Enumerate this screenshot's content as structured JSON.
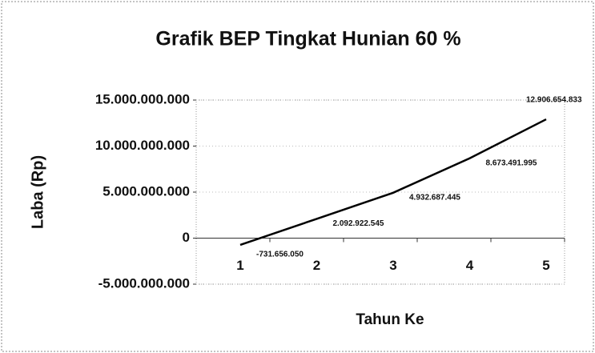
{
  "chart_data": {
    "type": "line",
    "title": "Grafik BEP Tingkat Hunian 60 %",
    "x_label": "Tahun Ke",
    "y_label": "Laba (Rp)",
    "categories": [
      "1",
      "2",
      "3",
      "4",
      "5"
    ],
    "values": [
      -731656050,
      2092922545,
      4932687445,
      8673491995,
      12906654833
    ],
    "value_labels": [
      "-731.656.050",
      "2.092.922.545",
      "4.932.687.445",
      "8.673.491.995",
      "12.906.654.833"
    ],
    "color": "#000000",
    "ylim": [
      -5000000000,
      15000000000
    ],
    "yticks": [
      {
        "value": -5000000000,
        "label": "-5.000.000.000"
      },
      0,
      {
        "value": 5000000000,
        "label": "5.000.000.000"
      },
      {
        "value": 10000000000,
        "label": "10.000.000.000"
      },
      {
        "value": 15000000000,
        "label": "15.000.000.000"
      }
    ],
    "grid": true
  }
}
